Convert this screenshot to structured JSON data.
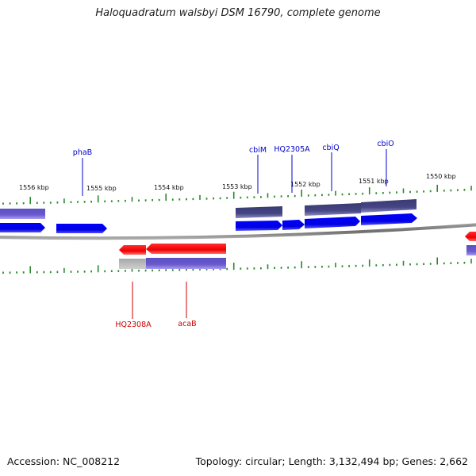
{
  "title": "Haloquadratum walsbyi DSM 16790, complete genome",
  "footer": {
    "accession": "Accession: NC_008212",
    "summary": "Topology: circular; Length: 3,132,494 bp; Genes: 2,662"
  },
  "scale_labels": [
    "1556 kbp",
    "1555 kbp",
    "1554 kbp",
    "1553 kbp",
    "1552 kbp",
    "1551 kbp",
    "1550 kbp"
  ],
  "gene_labels_top": [
    "phaB",
    "cbiM",
    "HQ2305A",
    "cbiQ",
    "cbiO"
  ],
  "gene_labels_bottom": [
    "HQ2308A",
    "acaB"
  ],
  "colors": {
    "forward_cds": "#0000ee",
    "reverse_cds": "#ee0000",
    "gene_purple": "#6a5acd",
    "gene_dark": "#40407a",
    "backbone": "#808080",
    "ticks": "#2a8a2a",
    "label_top": "#0000cc",
    "label_bottom": "#cc0000"
  }
}
